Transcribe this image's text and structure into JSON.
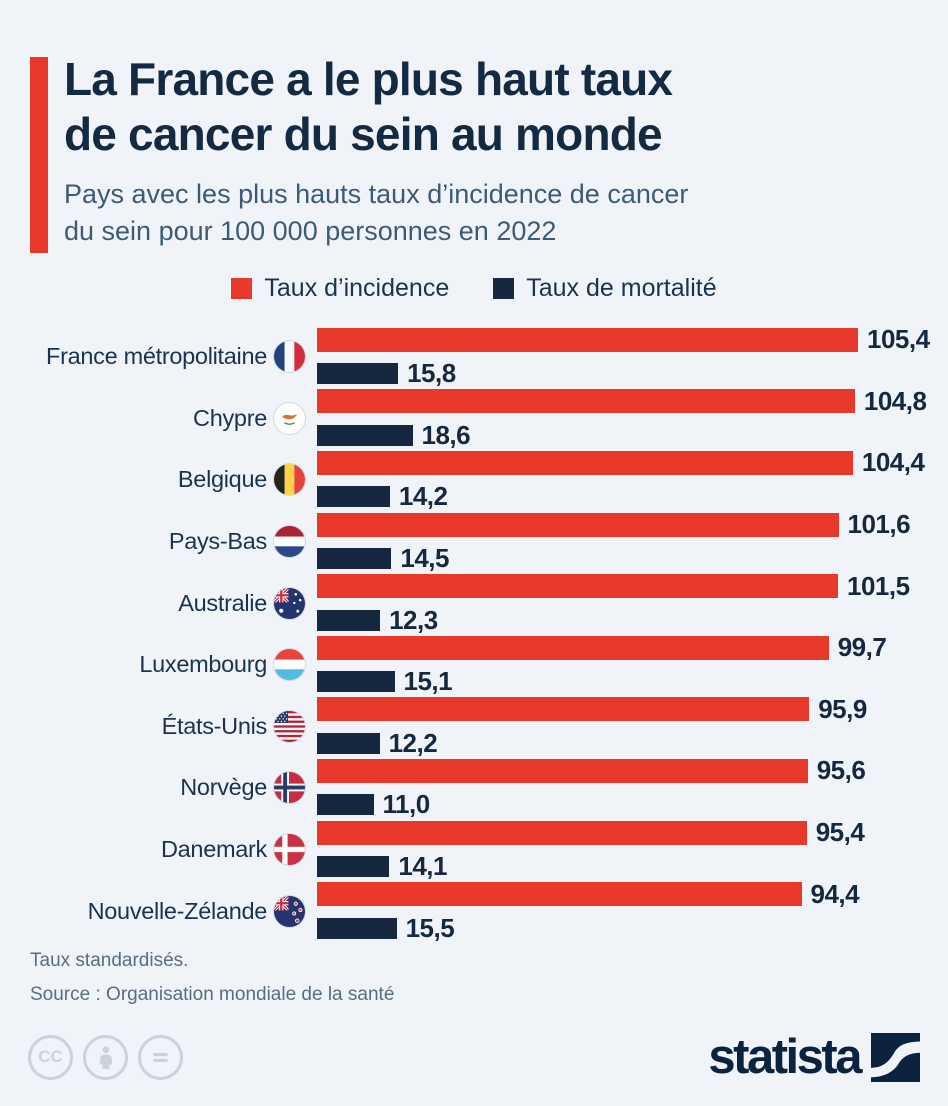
{
  "header": {
    "title_line1": "La France a le plus haut taux",
    "title_line2": "de cancer du sein au monde",
    "subtitle_line1": "Pays avec les plus hauts taux d’incidence de cancer",
    "subtitle_line2": "du sein pour 100 000 personnes en 2022"
  },
  "legend": {
    "items": [
      {
        "label": "Taux d’incidence",
        "color": "#e8392b"
      },
      {
        "label": "Taux de mortalité",
        "color": "#152840"
      }
    ]
  },
  "chart_data": {
    "type": "bar",
    "orientation": "horizontal",
    "grid": false,
    "xlim": [
      0,
      110
    ],
    "series_names": [
      "Taux d’incidence",
      "Taux de mortalité"
    ],
    "rows": [
      {
        "country": "France métropolitaine",
        "flag": "france",
        "incidence": 105.4,
        "mortality": 15.8,
        "incidence_label": "105,4",
        "mortality_label": "15,8"
      },
      {
        "country": "Chypre",
        "flag": "cyprus",
        "incidence": 104.8,
        "mortality": 18.6,
        "incidence_label": "104,8",
        "mortality_label": "18,6"
      },
      {
        "country": "Belgique",
        "flag": "belgium",
        "incidence": 104.4,
        "mortality": 14.2,
        "incidence_label": "104,4",
        "mortality_label": "14,2"
      },
      {
        "country": "Pays-Bas",
        "flag": "netherlands",
        "incidence": 101.6,
        "mortality": 14.5,
        "incidence_label": "101,6",
        "mortality_label": "14,5"
      },
      {
        "country": "Australie",
        "flag": "australia",
        "incidence": 101.5,
        "mortality": 12.3,
        "incidence_label": "101,5",
        "mortality_label": "12,3"
      },
      {
        "country": "Luxembourg",
        "flag": "luxembourg",
        "incidence": 99.7,
        "mortality": 15.1,
        "incidence_label": "99,7",
        "mortality_label": "15,1"
      },
      {
        "country": "États-Unis",
        "flag": "usa",
        "incidence": 95.9,
        "mortality": 12.2,
        "incidence_label": "95,9",
        "mortality_label": "12,2"
      },
      {
        "country": "Norvège",
        "flag": "norway",
        "incidence": 95.6,
        "mortality": 11.0,
        "incidence_label": "95,6",
        "mortality_label": "11,0"
      },
      {
        "country": "Danemark",
        "flag": "denmark",
        "incidence": 95.4,
        "mortality": 14.1,
        "incidence_label": "95,4",
        "mortality_label": "14,1"
      },
      {
        "country": "Nouvelle-Zélande",
        "flag": "new-zealand",
        "incidence": 94.4,
        "mortality": 15.5,
        "incidence_label": "94,4",
        "mortality_label": "15,5"
      }
    ]
  },
  "footer": {
    "note": "Taux standardisés.",
    "source": "Source : Organisation mondiale de la santé",
    "cc_label": "CC",
    "brand": "statista"
  },
  "colors": {
    "incidence": "#e8392b",
    "mortality": "#152840",
    "title": "#142a42",
    "subtitle": "#3e5a79",
    "label": "#1b3250",
    "footnote": "#5a6c83",
    "cc": "#c9d3de",
    "brand": "#0c2340",
    "bg": "#f0f4f9"
  }
}
